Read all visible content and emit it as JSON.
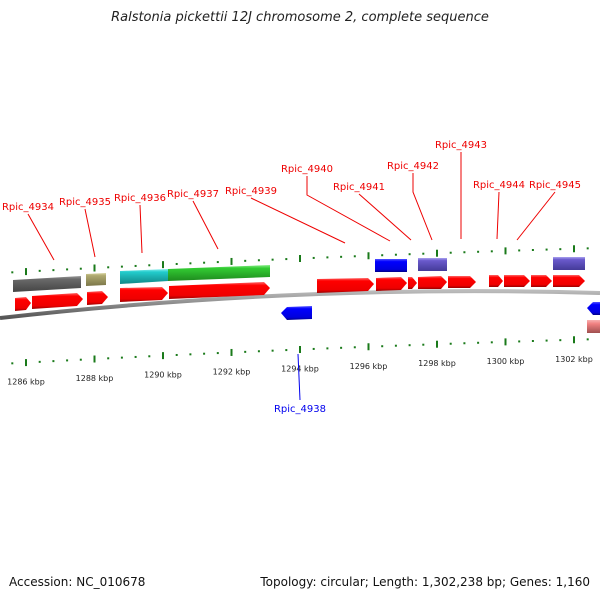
{
  "title": "Ralstonia pickettii 12J chromosome 2, complete sequence",
  "footer": {
    "accession": "Accession: NC_010678",
    "summary": "Topology: circular; Length: 1,302,238 bp; Genes: 1,160"
  },
  "colors": {
    "forward_cds": "#ff0000",
    "reverse_cds": "#0000ee",
    "label_forward": "#ee0000",
    "label_reverse": "#0000ee",
    "backbone": "#888888",
    "tick": "#1a7a1a",
    "gray_feature": "#666666",
    "olive_feature": "#aaa566",
    "cyan_feature": "#22cccc",
    "green_feature": "#33cc33",
    "purple_feature": "#6a5acd",
    "pink_feature": "#f08080"
  },
  "scale": {
    "unit": "kbp",
    "ticks": [
      {
        "label": "1286 kbp",
        "kbp": 1286
      },
      {
        "label": "1288 kbp",
        "kbp": 1288
      },
      {
        "label": "1290 kbp",
        "kbp": 1290
      },
      {
        "label": "1292 kbp",
        "kbp": 1292
      },
      {
        "label": "1294 kbp",
        "kbp": 1294
      },
      {
        "label": "1296 kbp",
        "kbp": 1296
      },
      {
        "label": "1298 kbp",
        "kbp": 1298
      },
      {
        "label": "1300 kbp",
        "kbp": 1300
      },
      {
        "label": "1302 kbp",
        "kbp": 1302
      }
    ]
  },
  "genes": [
    {
      "name": "Rpic_4934",
      "strand": "forward"
    },
    {
      "name": "Rpic_4935",
      "strand": "forward"
    },
    {
      "name": "Rpic_4936",
      "strand": "forward"
    },
    {
      "name": "Rpic_4937",
      "strand": "forward"
    },
    {
      "name": "Rpic_4938",
      "strand": "reverse"
    },
    {
      "name": "Rpic_4939",
      "strand": "forward"
    },
    {
      "name": "Rpic_4940",
      "strand": "forward"
    },
    {
      "name": "Rpic_4941",
      "strand": "forward"
    },
    {
      "name": "Rpic_4942",
      "strand": "forward"
    },
    {
      "name": "Rpic_4943",
      "strand": "forward"
    },
    {
      "name": "Rpic_4944",
      "strand": "forward"
    },
    {
      "name": "Rpic_4945",
      "strand": "forward"
    }
  ]
}
